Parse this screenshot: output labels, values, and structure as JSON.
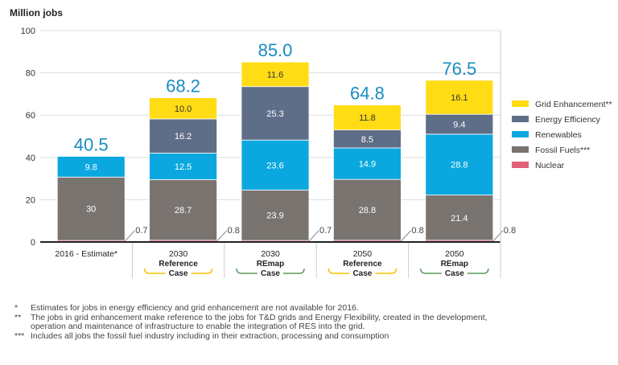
{
  "chart_data": {
    "type": "bar",
    "stacked": true,
    "ylabel": "Million jobs",
    "ylim": [
      0,
      100
    ],
    "yticks": [
      0,
      20,
      40,
      60,
      80,
      100
    ],
    "grid": true,
    "legend_position": "right",
    "categories": [
      {
        "year": "2016 - Estimate*",
        "case": "",
        "bracket": ""
      },
      {
        "year": "2030",
        "case": "Reference Case",
        "bracket": "#f5c400"
      },
      {
        "year": "2030",
        "case": "REmap Case",
        "bracket": "#5a9a5a"
      },
      {
        "year": "2050",
        "case": "Reference Case",
        "bracket": "#f5c400"
      },
      {
        "year": "2050",
        "case": "REmap Case",
        "bracket": "#5a9a5a"
      }
    ],
    "series": [
      {
        "name": "Nuclear",
        "color": "#e0607a",
        "values": [
          0.7,
          0.8,
          0.7,
          0.8,
          0.8
        ],
        "labels": [
          "0.7",
          "0.8",
          "0.7",
          "0.8",
          "0.8"
        ]
      },
      {
        "name": "Fossil Fuels***",
        "color": "#7a7470",
        "values": [
          30,
          28.7,
          23.9,
          28.8,
          21.4
        ],
        "labels": [
          "30",
          "28.7",
          "23.9",
          "28.8",
          "21.4"
        ]
      },
      {
        "name": "Renewables",
        "color": "#0aa8df",
        "values": [
          9.8,
          12.5,
          23.6,
          14.9,
          28.8
        ],
        "labels": [
          "9.8",
          "12.5",
          "23.6",
          "14.9",
          "28.8"
        ]
      },
      {
        "name": "Energy Efficiency",
        "color": "#5f6e88",
        "values": [
          0,
          16.2,
          25.3,
          8.5,
          9.4
        ],
        "labels": [
          "",
          "16.2",
          "25.3",
          "8.5",
          "9.4"
        ]
      },
      {
        "name": "Grid Enhancement**",
        "color": "#ffdc14",
        "values": [
          0,
          10.0,
          11.6,
          11.8,
          16.1
        ],
        "labels": [
          "",
          "10.0",
          "11.6",
          "11.8",
          "16.1"
        ]
      }
    ],
    "totals": [
      "40.5",
      "68.2",
      "85.0",
      "64.8",
      "76.5"
    ],
    "total_color": "#1a8bc4"
  },
  "footnotes": [
    {
      "mark": "*",
      "text": "Estimates for jobs in energy efficiency and grid enhancement are not available for 2016."
    },
    {
      "mark": "**",
      "text": "The jobs in grid enhancement make reference to the jobs for T&D grids and Energy Flexibility, created in the development, operation and maintenance of infrastructure to enable the integration of RES into the grid."
    },
    {
      "mark": "***",
      "text": "Includes all jobs the fossil fuel industry including in their extraction, processing and consumption"
    }
  ]
}
